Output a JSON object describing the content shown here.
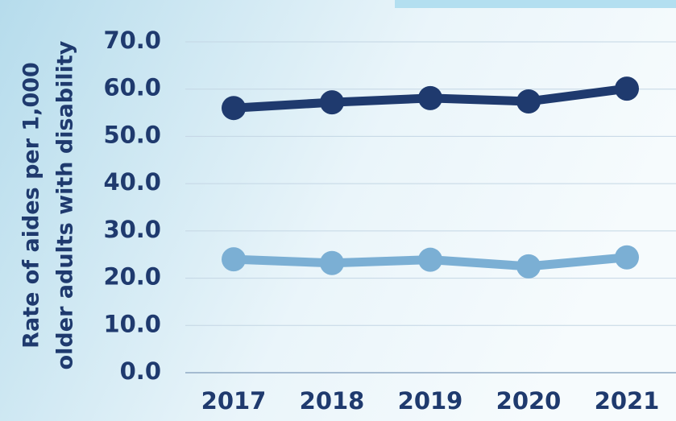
{
  "chart_data": {
    "type": "line",
    "ylabel": [
      "Rate of aides per 1,000",
      "older adults with disability"
    ],
    "categories": [
      "2017",
      "2018",
      "2019",
      "2020",
      "2021"
    ],
    "series": [
      {
        "color": "#1f3a6e",
        "values": [
          56.0,
          57.2,
          58.1,
          57.4,
          60.1
        ]
      },
      {
        "color": "#7bafd4",
        "values": [
          24.0,
          23.2,
          23.9,
          22.5,
          24.4
        ]
      }
    ],
    "ylim": [
      0,
      70
    ],
    "yticks": [
      {
        "value": 0,
        "label": "0.0"
      },
      {
        "value": 10,
        "label": "10.0"
      },
      {
        "value": 20,
        "label": "20.0"
      },
      {
        "value": 30,
        "label": "30.0"
      },
      {
        "value": 40,
        "label": "40.0"
      },
      {
        "value": 50,
        "label": "50.0"
      },
      {
        "value": 60,
        "label": "60.0"
      },
      {
        "value": 70,
        "label": "70.0"
      }
    ],
    "grid": true
  }
}
